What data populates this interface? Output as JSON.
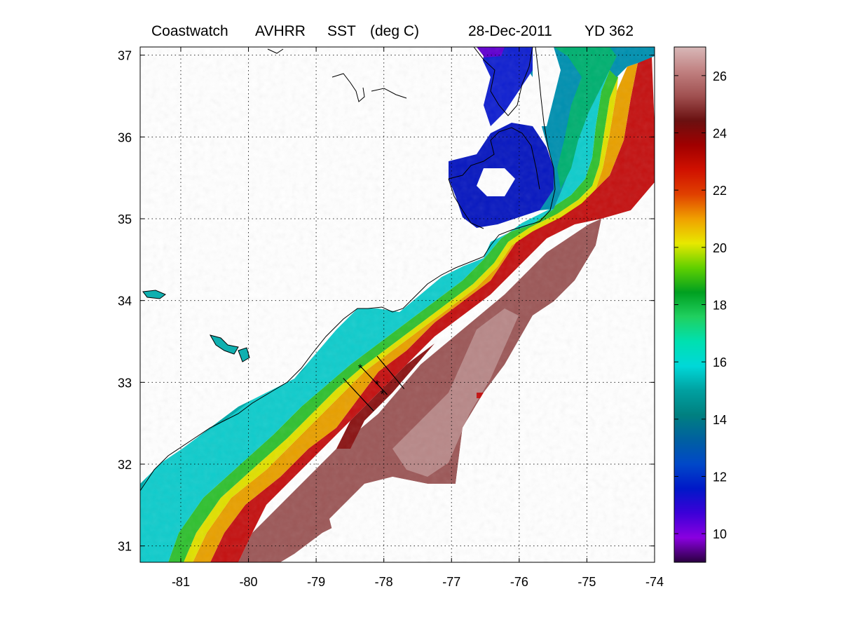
{
  "title": {
    "product": "Coastwatch",
    "sensor": "AVHRR",
    "variable": "SST",
    "units": "(deg C)",
    "date": "28-Dec-2011",
    "yearday": "YD 362"
  },
  "chart_data": {
    "type": "heatmap",
    "x_ticks": [
      -81,
      -80,
      -79,
      -78,
      -77,
      -76,
      -75,
      -74
    ],
    "y_ticks": [
      31,
      32,
      33,
      34,
      35,
      36,
      37
    ],
    "xlim": [
      -81.6,
      -74
    ],
    "ylim": [
      30.8,
      37.1
    ],
    "grid": true,
    "colorbar": {
      "ticks": [
        10,
        12,
        14,
        16,
        18,
        20,
        22,
        24,
        26
      ],
      "range": [
        9,
        27
      ],
      "placement": "right"
    },
    "colormap": [
      "#2a0040",
      "#8a00e0",
      "#3c00d8",
      "#0018c8",
      "#0048c8",
      "#0060a0",
      "#008080",
      "#00a0a0",
      "#00d8d8",
      "#00e0b0",
      "#20d060",
      "#00a020",
      "#60d000",
      "#e8e800",
      "#f0a000",
      "#e04000",
      "#d01000",
      "#a00000",
      "#6a1010",
      "#a05050",
      "#c08080",
      "#d8b8b8"
    ],
    "transect_markers": [
      {
        "lon": -78.35,
        "lat": 33.18,
        "symbol": "*"
      },
      {
        "lon": -78.1,
        "lat": 32.98,
        "symbol": "*"
      },
      {
        "lon": -78.02,
        "lat": 32.86,
        "symbol": "*"
      }
    ],
    "transect_lines": [
      {
        "lon": [
          -78.6,
          -78.15
        ],
        "lat": [
          33.05,
          32.65
        ]
      },
      {
        "lon": [
          -78.35,
          -77.95
        ],
        "lat": [
          33.2,
          32.85
        ]
      },
      {
        "lon": [
          -78.1,
          -77.7
        ],
        "lat": [
          33.32,
          32.92
        ]
      }
    ],
    "sst_regions": [
      {
        "name": "land",
        "color": "#ffffff"
      },
      {
        "name": "sounds",
        "color": "#0010c0"
      },
      {
        "name": "shelf-cold",
        "color": "#00d0d0"
      },
      {
        "name": "shelf-mid",
        "color": "#40d000"
      },
      {
        "name": "front",
        "color": "#e8d000"
      },
      {
        "name": "gulf-stream",
        "color": "#c01010"
      },
      {
        "name": "offshore-warm",
        "color": "#9a5050"
      }
    ]
  }
}
